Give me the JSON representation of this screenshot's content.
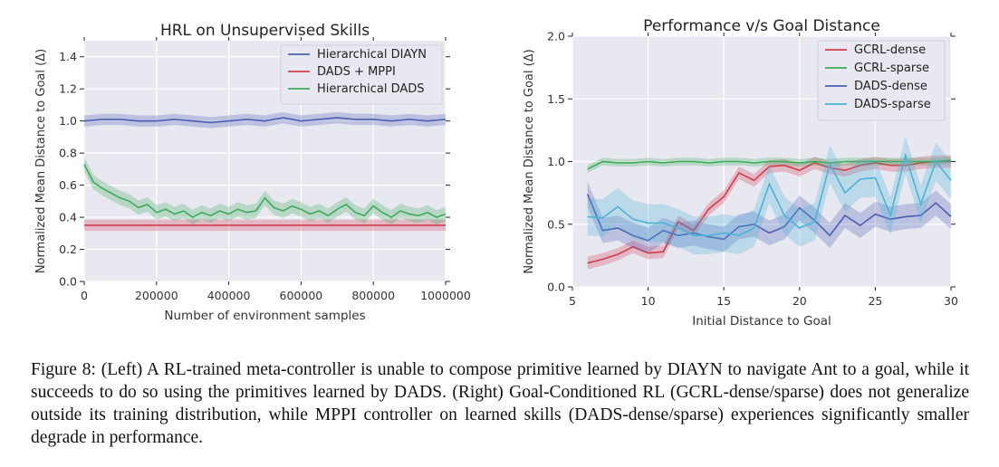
{
  "chart_data": [
    {
      "type": "line",
      "title": "HRL on Unsupervised Skills",
      "xlabel": "Number of environment samples",
      "ylabel": "Normalized Mean Distance to Goal (Δ)",
      "xlim": [
        0,
        1000000
      ],
      "ylim": [
        0,
        1.5
      ],
      "xticks": [
        0,
        200000,
        400000,
        600000,
        800000,
        1000000
      ],
      "xtick_labels": [
        "0",
        "200000",
        "400000",
        "600000",
        "800000",
        "1000000"
      ],
      "yticks": [
        0,
        0.2,
        0.4,
        0.6,
        0.8,
        1.0,
        1.2,
        1.4
      ],
      "ytick_labels": [
        "0.0",
        "0.2",
        "0.4",
        "0.6",
        "0.8",
        "1.0",
        "1.2",
        "1.4"
      ],
      "grid": true,
      "legend": "top-right",
      "series": [
        {
          "name": "Hierarchical DIAYN",
          "color": "#4c5fb0",
          "x": [
            0,
            50000,
            100000,
            150000,
            200000,
            250000,
            300000,
            350000,
            400000,
            450000,
            500000,
            550000,
            600000,
            650000,
            700000,
            750000,
            800000,
            850000,
            900000,
            950000,
            1000000
          ],
          "values": [
            1.0,
            1.01,
            1.01,
            1.0,
            1.0,
            1.01,
            1.0,
            0.99,
            1.0,
            1.01,
            1.0,
            1.02,
            1.0,
            1.01,
            1.02,
            1.01,
            1.01,
            1.0,
            1.01,
            1.0,
            1.01
          ],
          "band": 0.035
        },
        {
          "name": "DADS + MPPI",
          "color": "#d23c4e",
          "x": [
            0,
            1000000
          ],
          "values": [
            0.35,
            0.35
          ],
          "band": 0.035
        },
        {
          "name": "Hierarchical DADS",
          "color": "#3eab5a",
          "x": [
            0,
            25000,
            50000,
            75000,
            100000,
            125000,
            150000,
            175000,
            200000,
            225000,
            250000,
            275000,
            300000,
            325000,
            350000,
            375000,
            400000,
            425000,
            450000,
            475000,
            500000,
            525000,
            550000,
            575000,
            600000,
            625000,
            650000,
            675000,
            700000,
            725000,
            750000,
            775000,
            800000,
            825000,
            850000,
            875000,
            900000,
            925000,
            950000,
            975000,
            1000000
          ],
          "values": [
            0.73,
            0.62,
            0.58,
            0.55,
            0.52,
            0.5,
            0.46,
            0.48,
            0.43,
            0.45,
            0.42,
            0.44,
            0.4,
            0.43,
            0.41,
            0.44,
            0.42,
            0.45,
            0.43,
            0.44,
            0.52,
            0.46,
            0.44,
            0.47,
            0.45,
            0.42,
            0.44,
            0.41,
            0.45,
            0.48,
            0.43,
            0.41,
            0.47,
            0.43,
            0.4,
            0.44,
            0.42,
            0.41,
            0.43,
            0.4,
            0.42
          ],
          "band": 0.045
        }
      ]
    },
    {
      "type": "line",
      "title": "Performance v/s Goal Distance",
      "xlabel": "Initial Distance to Goal",
      "ylabel": "Normalized Mean Distance to Goal (Δ)",
      "xlim": [
        5,
        30
      ],
      "ylim": [
        0,
        2.0
      ],
      "xticks": [
        5,
        10,
        15,
        20,
        25,
        30
      ],
      "xtick_labels": [
        "5",
        "10",
        "15",
        "20",
        "25",
        "30"
      ],
      "yticks": [
        0,
        0.5,
        1.0,
        1.5,
        2.0
      ],
      "ytick_labels": [
        "0.0",
        "0.5",
        "1.0",
        "1.5",
        "2.0"
      ],
      "grid": true,
      "legend": "top-right",
      "series": [
        {
          "name": "GCRL-dense",
          "color": "#d23c4e",
          "x": [
            6,
            7,
            8,
            9,
            10,
            11,
            12,
            13,
            14,
            15,
            16,
            17,
            18,
            19,
            20,
            21,
            22,
            23,
            24,
            25,
            26,
            27,
            28,
            29,
            30
          ],
          "values": [
            0.19,
            0.22,
            0.26,
            0.32,
            0.27,
            0.28,
            0.52,
            0.45,
            0.62,
            0.72,
            0.91,
            0.85,
            0.96,
            0.97,
            0.93,
            0.99,
            0.95,
            0.93,
            0.97,
            0.99,
            0.97,
            0.97,
            0.99,
            1.0,
            1.0
          ],
          "band": 0.05
        },
        {
          "name": "GCRL-sparse",
          "color": "#3eab5a",
          "x": [
            6,
            7,
            8,
            9,
            10,
            11,
            12,
            13,
            14,
            15,
            16,
            17,
            18,
            19,
            20,
            21,
            22,
            23,
            24,
            25,
            26,
            27,
            28,
            29,
            30
          ],
          "values": [
            0.94,
            1.0,
            0.99,
            0.99,
            1.0,
            0.99,
            1.0,
            1.0,
            0.99,
            1.0,
            1.0,
            0.99,
            1.0,
            1.0,
            0.99,
            1.0,
            0.99,
            1.0,
            1.0,
            1.0,
            1.0,
            1.0,
            1.0,
            1.0,
            1.01
          ],
          "band": 0.03
        },
        {
          "name": "DADS-dense",
          "color": "#4c5fb0",
          "x": [
            6,
            7,
            8,
            9,
            10,
            11,
            12,
            13,
            14,
            15,
            16,
            17,
            18,
            19,
            20,
            21,
            22,
            23,
            24,
            25,
            26,
            27,
            28,
            29,
            30
          ],
          "values": [
            0.74,
            0.45,
            0.47,
            0.41,
            0.37,
            0.45,
            0.41,
            0.43,
            0.4,
            0.38,
            0.48,
            0.5,
            0.43,
            0.48,
            0.63,
            0.53,
            0.41,
            0.57,
            0.49,
            0.58,
            0.54,
            0.56,
            0.57,
            0.67,
            0.56
          ],
          "band": 0.1
        },
        {
          "name": "DADS-sparse",
          "color": "#4bb3d6",
          "x": [
            6,
            7,
            8,
            9,
            10,
            11,
            12,
            13,
            14,
            15,
            16,
            17,
            18,
            19,
            20,
            21,
            22,
            23,
            24,
            25,
            26,
            27,
            28,
            29,
            30
          ],
          "values": [
            0.56,
            0.55,
            0.64,
            0.54,
            0.51,
            0.51,
            0.47,
            0.41,
            0.41,
            0.43,
            0.41,
            0.47,
            0.82,
            0.57,
            0.47,
            0.52,
            0.98,
            0.75,
            0.86,
            0.87,
            0.57,
            1.05,
            0.66,
            1.0,
            0.85
          ],
          "band": 0.15
        }
      ]
    }
  ],
  "caption": {
    "prefix": "Figure 8: ",
    "text": "(Left) A RL-trained meta-controller is unable to compose primitive learned by DIAYN to navigate Ant to a goal, while it succeeds to do so using the primitives learned by DADS. (Right) Goal-Conditioned RL (GCRL-dense/sparse) does not generalize outside its training distribution, while MPPI controller on learned skills (DADS-dense/sparse) experiences significantly smaller degrade in performance."
  }
}
